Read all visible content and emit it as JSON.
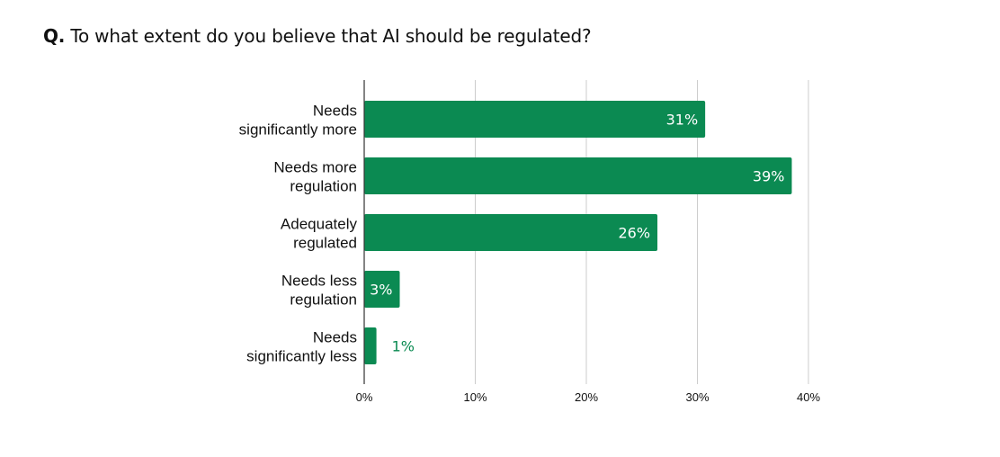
{
  "title": {
    "prefix": "Q.",
    "text": "To what extent do you believe that AI should be regulated?"
  },
  "colors": {
    "bar": "#0b8a52",
    "label_inside": "#ffffff",
    "label_outside": "#0b8a52",
    "grid": "#cccccc",
    "axis": "#333333"
  },
  "chart_data": {
    "type": "bar",
    "orientation": "horizontal",
    "categories": [
      [
        "Needs",
        "significantly more"
      ],
      [
        "Needs more",
        "regulation"
      ],
      [
        "Adequately",
        "regulated"
      ],
      [
        "Needs less",
        "regulation"
      ],
      [
        "Needs",
        "significantly less"
      ]
    ],
    "values": [
      30.7,
      38.5,
      26.4,
      3.2,
      1.1
    ],
    "data_labels": [
      "31%",
      "39%",
      "26%",
      "3%",
      "1%"
    ],
    "xlim": [
      0,
      40
    ],
    "xticks": [
      0,
      10,
      20,
      30,
      40
    ],
    "xtick_labels": [
      "0%",
      "10%",
      "20%",
      "30%",
      "40%"
    ],
    "grid": true,
    "legend": "none"
  }
}
